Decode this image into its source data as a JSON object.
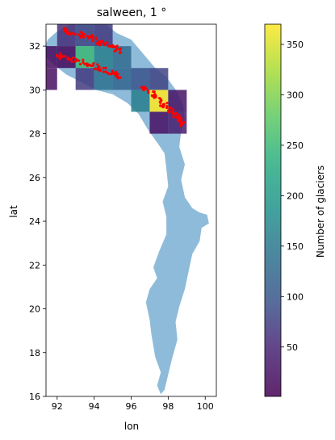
{
  "chart_data": {
    "type": "heatmap",
    "title": "salween, 1 °",
    "xlabel": "lon",
    "ylabel": "lat",
    "xlim": [
      91.4,
      100.6
    ],
    "ylim": [
      16,
      33
    ],
    "xticks": [
      92,
      94,
      96,
      98,
      100
    ],
    "yticks": [
      16,
      18,
      20,
      22,
      24,
      26,
      28,
      30,
      32
    ],
    "grid": false,
    "colorbar": {
      "label": "Number of glaciers",
      "min": 1,
      "max": 370,
      "ticks": [
        50,
        100,
        150,
        200,
        250,
        300,
        350
      ],
      "colormap": "viridis",
      "alpha": 0.85
    },
    "cells": [
      {
        "lon": 92,
        "lat": 32,
        "value": 60
      },
      {
        "lon": 93,
        "lat": 32,
        "value": 80
      },
      {
        "lon": 94,
        "lat": 32,
        "value": 70
      },
      {
        "lon": 91,
        "lat": 31,
        "value": 15
      },
      {
        "lon": 92,
        "lat": 31,
        "value": 10
      },
      {
        "lon": 93,
        "lat": 31,
        "value": 250
      },
      {
        "lon": 94,
        "lat": 31,
        "value": 160
      },
      {
        "lon": 95,
        "lat": 31,
        "value": 130
      },
      {
        "lon": 91,
        "lat": 30,
        "value": 20
      },
      {
        "lon": 93,
        "lat": 30,
        "value": 70
      },
      {
        "lon": 94,
        "lat": 30,
        "value": 140
      },
      {
        "lon": 95,
        "lat": 30,
        "value": 120
      },
      {
        "lon": 96,
        "lat": 30,
        "value": 95
      },
      {
        "lon": 97,
        "lat": 30,
        "value": 80
      },
      {
        "lon": 96,
        "lat": 29,
        "value": 160
      },
      {
        "lon": 97,
        "lat": 29,
        "value": 370
      },
      {
        "lon": 98,
        "lat": 29,
        "value": 25
      },
      {
        "lon": 97,
        "lat": 28,
        "value": 20
      },
      {
        "lon": 98,
        "lat": 28,
        "value": 40
      }
    ],
    "basin_color": "#8fbbda",
    "glacier_color": "#ff0000"
  }
}
